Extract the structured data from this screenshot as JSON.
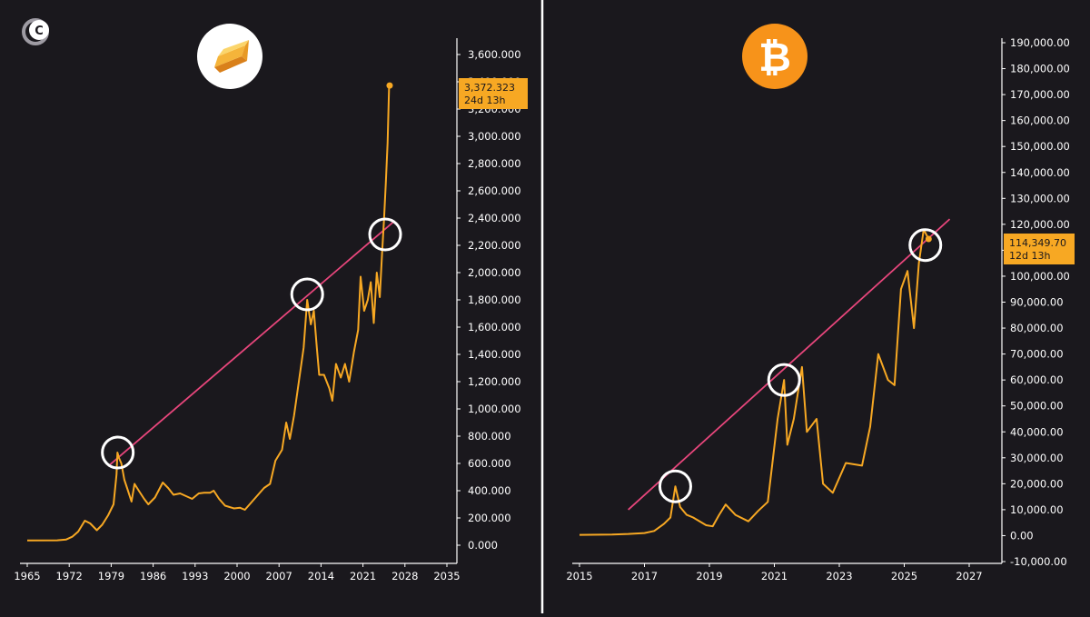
{
  "brand": {
    "logo_letter": "C",
    "icon": "circle-c-logo-icon"
  },
  "colors": {
    "background": "#1a181d",
    "line": "#f7a823",
    "trend": "#e8467c",
    "highlight": "#ffffff",
    "tag": "#f7a823",
    "bitcoin": "#f7931a",
    "divider": "#ffffff"
  },
  "chart_data": [
    {
      "type": "line",
      "asset_icon": "gold-bar-icon",
      "x_ticks": [
        "1965",
        "1972",
        "1979",
        "1986",
        "1993",
        "2000",
        "2007",
        "2014",
        "2021",
        "2028",
        "2035"
      ],
      "y_ticks": [
        "0.000",
        "200.000",
        "400.000",
        "600.000",
        "800.000",
        "1,000.000",
        "1,200.000",
        "1,400.000",
        "1,600.000",
        "1,800.000",
        "2,000.000",
        "2,200.000",
        "2,400.000",
        "2,600.000",
        "2,800.000",
        "3,000.000",
        "3,200.000",
        "3,400.000",
        "3,600.000"
      ],
      "xlim": [
        1965,
        2035
      ],
      "ylim": [
        0,
        3600
      ],
      "price_tag": {
        "value": "3,372.323",
        "countdown": "24d 13h"
      },
      "series": [
        {
          "values": [
            [
              1965,
              35
            ],
            [
              1970,
              36
            ],
            [
              1971.5,
              42
            ],
            [
              1972.5,
              62
            ],
            [
              1973.5,
              100
            ],
            [
              1974.6,
              180
            ],
            [
              1975.5,
              160
            ],
            [
              1976.6,
              110
            ],
            [
              1977.5,
              150
            ],
            [
              1978.5,
              220
            ],
            [
              1979.4,
              300
            ],
            [
              1979.9,
              520
            ],
            [
              1980.05,
              680
            ],
            [
              1980.3,
              640
            ],
            [
              1980.7,
              600
            ],
            [
              1981.2,
              480
            ],
            [
              1981.8,
              400
            ],
            [
              1982.4,
              320
            ],
            [
              1982.9,
              450
            ],
            [
              1983.6,
              400
            ],
            [
              1984.5,
              340
            ],
            [
              1985.2,
              300
            ],
            [
              1986.3,
              350
            ],
            [
              1987.6,
              460
            ],
            [
              1988.5,
              420
            ],
            [
              1989.4,
              370
            ],
            [
              1990.5,
              380
            ],
            [
              1991.5,
              360
            ],
            [
              1992.5,
              340
            ],
            [
              1993.6,
              380
            ],
            [
              1994.5,
              385
            ],
            [
              1995.5,
              385
            ],
            [
              1996.1,
              400
            ],
            [
              1997,
              340
            ],
            [
              1998,
              290
            ],
            [
              1999.5,
              270
            ],
            [
              2000.5,
              275
            ],
            [
              2001.3,
              260
            ],
            [
              2002.5,
              320
            ],
            [
              2003.5,
              370
            ],
            [
              2004.5,
              420
            ],
            [
              2005.5,
              450
            ],
            [
              2006.4,
              620
            ],
            [
              2007.5,
              700
            ],
            [
              2008.2,
              900
            ],
            [
              2008.8,
              780
            ],
            [
              2009.5,
              950
            ],
            [
              2010.3,
              1200
            ],
            [
              2011.1,
              1450
            ],
            [
              2011.7,
              1800
            ],
            [
              2012.3,
              1620
            ],
            [
              2012.8,
              1720
            ],
            [
              2013.3,
              1450
            ],
            [
              2013.7,
              1250
            ],
            [
              2014.5,
              1250
            ],
            [
              2015.4,
              1150
            ],
            [
              2015.9,
              1060
            ],
            [
              2016.5,
              1330
            ],
            [
              2017.3,
              1230
            ],
            [
              2018,
              1330
            ],
            [
              2018.7,
              1200
            ],
            [
              2019.5,
              1420
            ],
            [
              2020.2,
              1580
            ],
            [
              2020.6,
              1970
            ],
            [
              2021.2,
              1720
            ],
            [
              2021.8,
              1800
            ],
            [
              2022.3,
              1930
            ],
            [
              2022.8,
              1630
            ],
            [
              2023.3,
              2000
            ],
            [
              2023.8,
              1820
            ],
            [
              2024.2,
              2150
            ],
            [
              2024.5,
              2380
            ],
            [
              2024.8,
              2650
            ],
            [
              2025.1,
              2950
            ],
            [
              2025.35,
              3350
            ],
            [
              2025.45,
              3372.323
            ]
          ]
        }
      ],
      "trend_line": [
        [
          1978.5,
          580
        ],
        [
          2026.3,
          2380
        ]
      ],
      "highlight_points": [
        [
          1980.1,
          680
        ],
        [
          2011.7,
          1840
        ],
        [
          2024.7,
          2280
        ]
      ]
    },
    {
      "type": "line",
      "asset_icon": "bitcoin-icon",
      "x_ticks": [
        "2015",
        "2017",
        "2019",
        "2021",
        "2023",
        "2025",
        "2027"
      ],
      "y_ticks": [
        "-10,000.00",
        "0.00",
        "10,000.00",
        "20,000.00",
        "30,000.00",
        "40,000.00",
        "50,000.00",
        "60,000.00",
        "70,000.00",
        "80,000.00",
        "90,000.00",
        "100,000.00",
        "110,000.00",
        "120,000.00",
        "130,000.00",
        "140,000.00",
        "150,000.00",
        "160,000.00",
        "170,000.00",
        "180,000.00",
        "190,000.00"
      ],
      "xlim": [
        2015,
        2028.5
      ],
      "ylim": [
        -10000,
        190000
      ],
      "price_tag": {
        "value": "114,349.70",
        "countdown": "12d 13h"
      },
      "series": [
        {
          "values": [
            [
              2015,
              300
            ],
            [
              2016,
              430
            ],
            [
              2016.5,
              650
            ],
            [
              2017,
              1000
            ],
            [
              2017.3,
              1800
            ],
            [
              2017.6,
              4500
            ],
            [
              2017.8,
              7000
            ],
            [
              2017.95,
              19000
            ],
            [
              2018.1,
              11000
            ],
            [
              2018.3,
              8000
            ],
            [
              2018.5,
              7000
            ],
            [
              2018.9,
              4000
            ],
            [
              2019.1,
              3600
            ],
            [
              2019.3,
              8000
            ],
            [
              2019.5,
              12000
            ],
            [
              2019.8,
              8000
            ],
            [
              2020.2,
              5500
            ],
            [
              2020.5,
              9500
            ],
            [
              2020.8,
              13000
            ],
            [
              2020.95,
              29000
            ],
            [
              2021.1,
              45000
            ],
            [
              2021.3,
              60000
            ],
            [
              2021.4,
              35000
            ],
            [
              2021.6,
              45000
            ],
            [
              2021.85,
              65000
            ],
            [
              2022.0,
              40000
            ],
            [
              2022.3,
              45000
            ],
            [
              2022.5,
              20000
            ],
            [
              2022.8,
              16500
            ],
            [
              2023.2,
              28000
            ],
            [
              2023.7,
              27000
            ],
            [
              2023.95,
              42000
            ],
            [
              2024.2,
              70000
            ],
            [
              2024.5,
              60000
            ],
            [
              2024.7,
              58000
            ],
            [
              2024.9,
              95000
            ],
            [
              2025.1,
              102000
            ],
            [
              2025.3,
              80000
            ],
            [
              2025.45,
              105000
            ],
            [
              2025.6,
              118000
            ],
            [
              2025.75,
              114349.7
            ]
          ]
        }
      ],
      "trend_line": [
        [
          2016.5,
          10000
        ],
        [
          2026.4,
          122000
        ]
      ],
      "highlight_points": [
        [
          2017.95,
          19000
        ],
        [
          2021.3,
          60000
        ],
        [
          2025.65,
          112000
        ]
      ]
    }
  ]
}
